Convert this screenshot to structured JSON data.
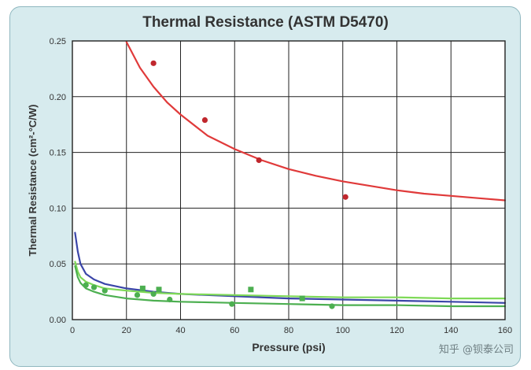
{
  "watermark": "知乎 @钡泰公司",
  "chart_data": {
    "type": "line",
    "title": "Thermal Resistance (ASTM D5470)",
    "xlabel": "Pressure (psi)",
    "ylabel": "Thermal Resistance (cm²-°C/W)",
    "xlim": [
      0,
      160
    ],
    "ylim": [
      0,
      0.25
    ],
    "xticks": [
      0,
      20,
      40,
      60,
      80,
      100,
      120,
      140,
      160
    ],
    "xtick_labels": [
      "0",
      "20",
      "40",
      "60",
      "80",
      "100",
      "120",
      "140",
      "160"
    ],
    "yticks": [
      0,
      0.05,
      0.1,
      0.15,
      0.2,
      0.25
    ],
    "ytick_labels": [
      "0.00",
      "0.05",
      "0.10",
      "0.15",
      "0.20",
      "0.25"
    ],
    "grid": true,
    "legend": "none",
    "series": [
      {
        "color": "#e03a3a",
        "kind": "line",
        "x": [
          20,
          25,
          30,
          35,
          40,
          50,
          60,
          70,
          80,
          90,
          100,
          110,
          120,
          130,
          140,
          150,
          160
        ],
        "y": [
          0.249,
          0.226,
          0.209,
          0.195,
          0.184,
          0.165,
          0.153,
          0.143,
          0.135,
          0.129,
          0.124,
          0.12,
          0.116,
          0.113,
          0.111,
          0.109,
          0.107
        ]
      },
      {
        "color": "#c0272d",
        "kind": "points",
        "marker": "circle",
        "x": [
          30,
          49,
          69,
          101
        ],
        "y": [
          0.23,
          0.179,
          0.143,
          0.11
        ]
      },
      {
        "color": "#3a45a8",
        "kind": "line",
        "x": [
          1,
          2,
          3,
          5,
          8,
          12,
          20,
          30,
          40,
          60,
          80,
          100,
          120,
          140,
          160
        ],
        "y": [
          0.078,
          0.061,
          0.05,
          0.041,
          0.036,
          0.032,
          0.028,
          0.025,
          0.023,
          0.021,
          0.019,
          0.018,
          0.017,
          0.016,
          0.015
        ]
      },
      {
        "color": "#7ed957",
        "kind": "line",
        "x": [
          1,
          2,
          3,
          5,
          8,
          12,
          20,
          30,
          40,
          60,
          80,
          100,
          120,
          140,
          160
        ],
        "y": [
          0.052,
          0.043,
          0.038,
          0.034,
          0.031,
          0.028,
          0.026,
          0.024,
          0.023,
          0.022,
          0.021,
          0.02,
          0.02,
          0.019,
          0.019
        ]
      },
      {
        "color": "#4caf50",
        "kind": "line",
        "x": [
          1,
          2,
          3,
          5,
          8,
          12,
          20,
          30,
          40,
          60,
          80,
          100,
          120,
          140,
          160
        ],
        "y": [
          0.048,
          0.038,
          0.033,
          0.028,
          0.025,
          0.022,
          0.019,
          0.017,
          0.016,
          0.015,
          0.014,
          0.013,
          0.013,
          0.012,
          0.012
        ]
      },
      {
        "color": "#4caf50",
        "kind": "points",
        "marker": "square",
        "x": [
          26,
          32,
          66,
          85
        ],
        "y": [
          0.028,
          0.027,
          0.027,
          0.019
        ]
      },
      {
        "color": "#4caf50",
        "kind": "points",
        "marker": "circle",
        "x": [
          5,
          8,
          12,
          24,
          30,
          36,
          59,
          96
        ],
        "y": [
          0.031,
          0.029,
          0.026,
          0.022,
          0.023,
          0.018,
          0.014,
          0.012
        ]
      }
    ]
  }
}
